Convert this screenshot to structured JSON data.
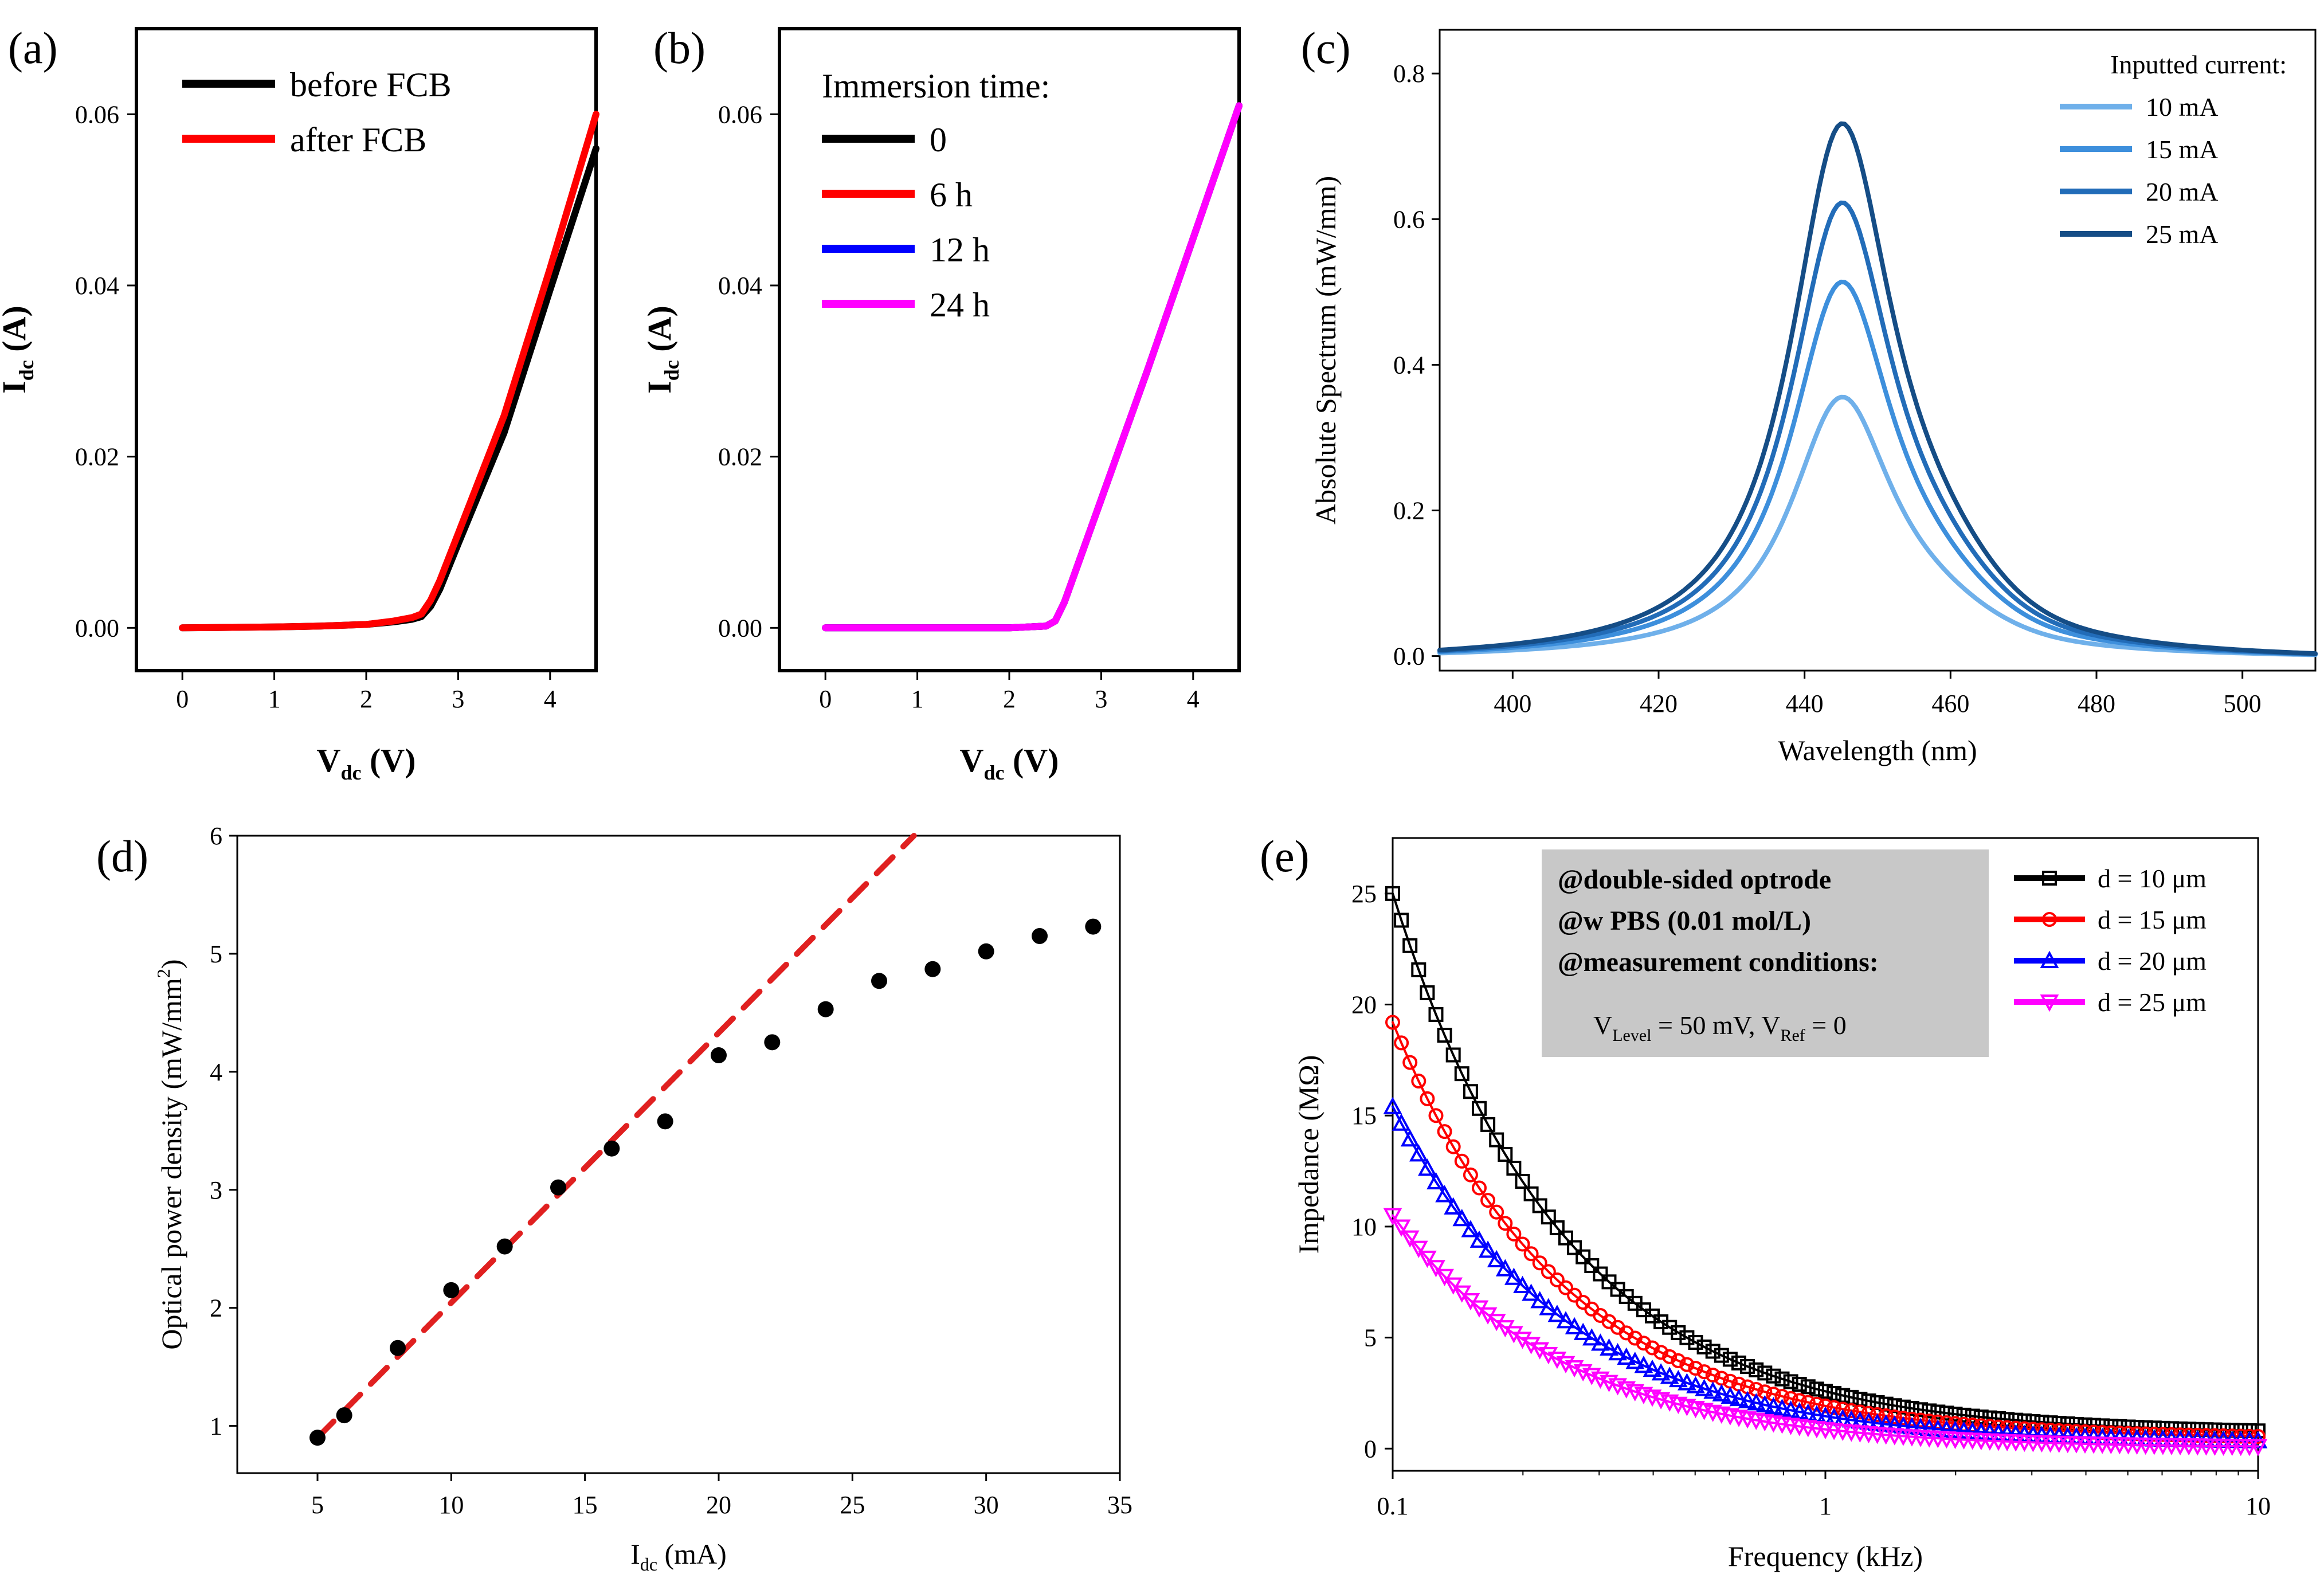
{
  "chart_data": [
    {
      "id": "a",
      "type": "line",
      "panel_label": "(a)",
      "xlabel": "V",
      "xlabel_sub": "dc",
      "xlabel_unit": " (V)",
      "ylabel": "I",
      "ylabel_sub": "dc",
      "ylabel_unit": " (A)",
      "xlim": [
        -0.5,
        4.5
      ],
      "ylim": [
        -0.005,
        0.07
      ],
      "xticks": [
        0,
        1,
        2,
        3,
        4
      ],
      "xtick_labels": [
        "0",
        "1",
        "2",
        "3",
        "4"
      ],
      "yticks": [
        0,
        0.02,
        0.04,
        0.06
      ],
      "ytick_labels": [
        "0.00",
        "0.02",
        "0.04",
        "0.06"
      ],
      "legend_position": "top-left",
      "series": [
        {
          "name": "before FCB",
          "color": "#000000",
          "x": [
            0,
            1,
            1.5,
            2,
            2.3,
            2.5,
            2.6,
            2.7,
            2.8,
            3.0,
            3.5,
            4.0,
            4.5
          ],
          "y": [
            0,
            0.0001,
            0.0002,
            0.0004,
            0.0007,
            0.001,
            0.0013,
            0.0025,
            0.0045,
            0.0098,
            0.0228,
            0.0395,
            0.056
          ]
        },
        {
          "name": "after FCB",
          "color": "#ff0000",
          "x": [
            0,
            1,
            1.5,
            2,
            2.3,
            2.5,
            2.6,
            2.7,
            2.8,
            3.0,
            3.5,
            4.0,
            4.5
          ],
          "y": [
            0,
            0.0001,
            0.0002,
            0.0004,
            0.0008,
            0.0012,
            0.0016,
            0.0032,
            0.0055,
            0.011,
            0.0248,
            0.042,
            0.06
          ]
        }
      ]
    },
    {
      "id": "b",
      "type": "line",
      "panel_label": "(b)",
      "xlabel": "V",
      "xlabel_sub": "dc",
      "xlabel_unit": " (V)",
      "ylabel": "I",
      "ylabel_sub": "dc",
      "ylabel_unit": " (A)",
      "xlim": [
        -0.5,
        4.5
      ],
      "ylim": [
        -0.005,
        0.07
      ],
      "xticks": [
        0,
        1,
        2,
        3,
        4
      ],
      "xtick_labels": [
        "0",
        "1",
        "2",
        "3",
        "4"
      ],
      "yticks": [
        0,
        0.02,
        0.04,
        0.06
      ],
      "ytick_labels": [
        "0.00",
        "0.02",
        "0.04",
        "0.06"
      ],
      "legend_title": "Immersion time:",
      "legend_position": "top-left",
      "series": [
        {
          "name": "0",
          "color": "#000000",
          "x": [
            0,
            1,
            2,
            2.4,
            2.5,
            2.6,
            2.7,
            3.0,
            3.5,
            4.0,
            4.5
          ],
          "y": [
            0,
            0,
            0,
            0.0002,
            0.0008,
            0.003,
            0.006,
            0.015,
            0.03,
            0.0455,
            0.061
          ]
        },
        {
          "name": "6 h",
          "color": "#ff0000",
          "x": [
            0,
            1,
            2,
            2.4,
            2.5,
            2.6,
            2.7,
            3.0,
            3.5,
            4.0,
            4.5
          ],
          "y": [
            0,
            0,
            0,
            0.0002,
            0.0008,
            0.003,
            0.006,
            0.015,
            0.03,
            0.0455,
            0.061
          ]
        },
        {
          "name": "12 h",
          "color": "#0000ff",
          "x": [
            0,
            1,
            2,
            2.4,
            2.5,
            2.6,
            2.7,
            3.0,
            3.5,
            4.0,
            4.5
          ],
          "y": [
            0,
            0,
            0,
            0.0002,
            0.0008,
            0.003,
            0.006,
            0.015,
            0.03,
            0.0455,
            0.061
          ]
        },
        {
          "name": "24 h",
          "color": "#ff00ff",
          "x": [
            0,
            1,
            2,
            2.4,
            2.5,
            2.6,
            2.7,
            3.0,
            3.5,
            4.0,
            4.5
          ],
          "y": [
            0,
            0,
            0,
            0.0002,
            0.0008,
            0.003,
            0.006,
            0.015,
            0.03,
            0.0455,
            0.061
          ]
        }
      ]
    },
    {
      "id": "c",
      "type": "line",
      "panel_label": "(c)",
      "xlabel": "Wavelength (nm)",
      "ylabel": "Absolute Spectrum (mW/mm)",
      "xlim": [
        390,
        510
      ],
      "ylim": [
        -0.02,
        0.86
      ],
      "xticks": [
        400,
        420,
        440,
        460,
        480,
        500
      ],
      "xtick_labels": [
        "400",
        "420",
        "440",
        "460",
        "480",
        "500"
      ],
      "yticks": [
        0,
        0.2,
        0.4,
        0.6,
        0.8
      ],
      "ytick_labels": [
        "0.0",
        "0.2",
        "0.4",
        "0.6",
        "0.8"
      ],
      "legend_title": "Inputted current:",
      "legend_position": "top-right",
      "peak_wavelength": 445,
      "series": [
        {
          "name": "10 mA",
          "color": "#6fb0ea",
          "peak": 0.36
        },
        {
          "name": "15 mA",
          "color": "#3d8fdc",
          "peak": 0.52
        },
        {
          "name": "20 mA",
          "color": "#226cb8",
          "peak": 0.63
        },
        {
          "name": "25 mA",
          "color": "#154d86",
          "peak": 0.74
        }
      ]
    },
    {
      "id": "d",
      "type": "scatter",
      "panel_label": "(d)",
      "xlabel": "I",
      "xlabel_sub": "dc",
      "xlabel_unit": " (mA)",
      "ylabel": "Optical power density (mW/mm",
      "ylabel_sup": "2",
      "ylabel_end": ")",
      "xlim": [
        2,
        35
      ],
      "ylim": [
        0.6,
        6
      ],
      "xticks": [
        5,
        10,
        15,
        20,
        25,
        30,
        35
      ],
      "xtick_labels": [
        "5",
        "10",
        "15",
        "20",
        "25",
        "30",
        "35"
      ],
      "yticks": [
        1,
        2,
        3,
        4,
        5,
        6
      ],
      "ytick_labels": [
        "1",
        "2",
        "3",
        "4",
        "5",
        "6"
      ],
      "x": [
        5,
        6,
        8,
        10,
        12,
        14,
        16,
        18,
        20,
        22,
        24,
        26,
        28,
        30,
        32,
        34
      ],
      "y": [
        0.9,
        1.09,
        1.66,
        2.15,
        2.52,
        3.02,
        3.35,
        3.58,
        4.14,
        4.25,
        4.53,
        4.77,
        4.87,
        5.02,
        5.15,
        5.23
      ],
      "fit_line": {
        "x": [
          5,
          27.3
        ],
        "y": [
          0.9,
          6.0
        ],
        "color": "#e02020",
        "style": "dashed"
      }
    },
    {
      "id": "e",
      "type": "line",
      "panel_label": "(e)",
      "xlabel": "Frequency (kHz)",
      "ylabel": "Impedance (MΩ)",
      "xscale": "log",
      "xlim": [
        0.1,
        10
      ],
      "ylim": [
        -1,
        27.5
      ],
      "xticks": [
        0.1,
        1,
        10
      ],
      "xtick_labels": [
        "0.1",
        "1",
        "10"
      ],
      "yticks": [
        0,
        5,
        10,
        15,
        20,
        25
      ],
      "ytick_labels": [
        "0",
        "5",
        "10",
        "15",
        "20",
        "25"
      ],
      "legend_position": "top-right",
      "annotation_lines": [
        "@double-sided optrode",
        "@w PBS (0.01 mol/L)",
        "@measurement conditions:"
      ],
      "annotation_formula": {
        "v1": "V",
        "v1_sub": "Level",
        "v1_rest": " = 50 mV, ",
        "v2": "V",
        "v2_sub": "Ref",
        "v2_rest": " = 0"
      },
      "series": [
        {
          "name": "d = 10 μm",
          "color": "#000000",
          "marker": "square",
          "y_start": 25.0,
          "y_end": 0.8
        },
        {
          "name": "d = 15 μm",
          "color": "#ff0000",
          "marker": "circle",
          "y_start": 19.2,
          "y_end": 0.55
        },
        {
          "name": "d = 20 μm",
          "color": "#0000ff",
          "marker": "triangle-up",
          "y_start": 15.4,
          "y_end": 0.35
        },
        {
          "name": "d = 25 μm",
          "color": "#ff00ff",
          "marker": "triangle-down",
          "y_start": 10.5,
          "y_end": 0.1
        }
      ]
    }
  ]
}
